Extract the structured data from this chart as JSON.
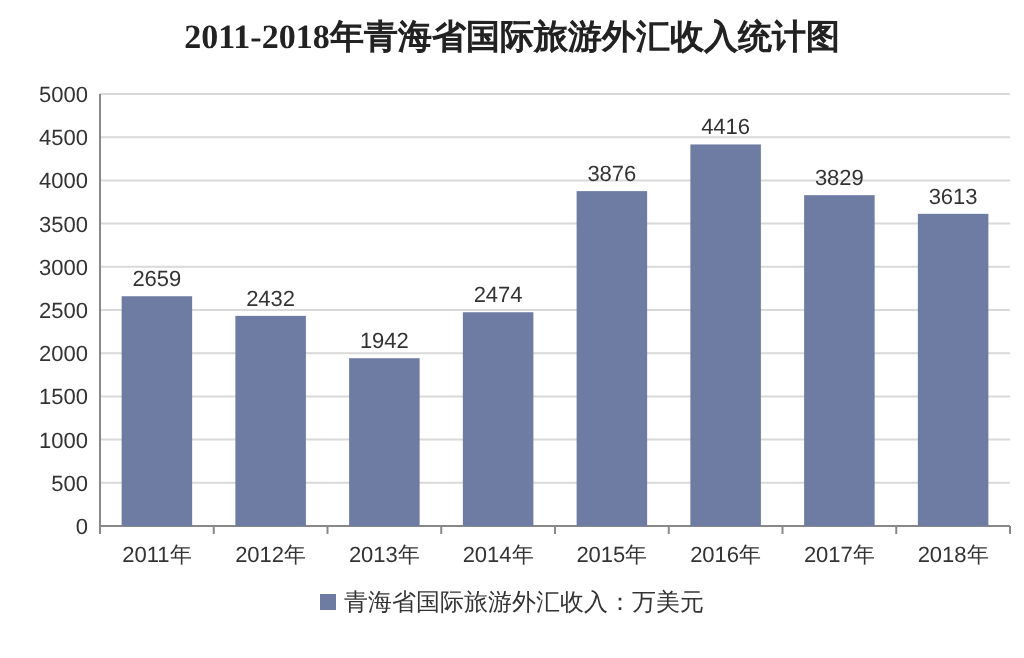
{
  "chart_data": {
    "type": "bar",
    "title": "2011-2018年青海省国际旅游外汇收入统计图",
    "categories": [
      "2011年",
      "2012年",
      "2013年",
      "2014年",
      "2015年",
      "2016年",
      "2017年",
      "2018年"
    ],
    "series": [
      {
        "name": "青海省国际旅游外汇收入：万美元",
        "color": "#6e7ba3",
        "values": [
          2659,
          2432,
          1942,
          2474,
          3876,
          4416,
          3829,
          3613
        ]
      }
    ],
    "ylim": [
      0,
      5000
    ],
    "yticks": [
      0,
      500,
      1000,
      1500,
      2000,
      2500,
      3000,
      3500,
      4000,
      4500,
      5000
    ],
    "grid": "y",
    "legend": "bottom",
    "data_labels": true
  }
}
